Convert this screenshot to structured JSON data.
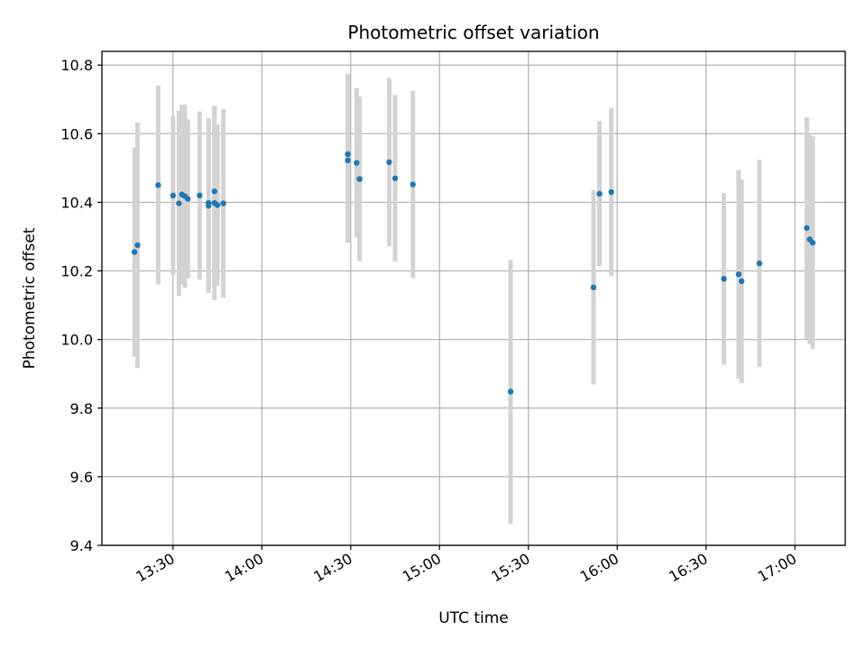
{
  "chart_data": {
    "type": "scatter",
    "title": "Photometric offset variation",
    "xlabel": "UTC time",
    "ylabel": "Photometric offset",
    "grid": true,
    "colors": {
      "point": "#1f77b4",
      "errorbar": "#d3d3d3",
      "grid": "#b0b0b0"
    },
    "xlim": [
      "13:06",
      "17:17"
    ],
    "ylim": [
      9.4,
      10.84
    ],
    "x_ticks": [
      "13:30",
      "14:00",
      "14:30",
      "15:00",
      "15:30",
      "16:00",
      "16:30",
      "17:00"
    ],
    "y_ticks": [
      "9.4",
      "9.6",
      "9.8",
      "10.0",
      "10.2",
      "10.4",
      "10.6",
      "10.8"
    ],
    "points": [
      {
        "x": "13:17",
        "y": 10.255,
        "err": 0.305
      },
      {
        "x": "13:18",
        "y": 10.275,
        "err": 0.358
      },
      {
        "x": "13:25",
        "y": 10.45,
        "err": 0.29
      },
      {
        "x": "13:30",
        "y": 10.42,
        "err": 0.232
      },
      {
        "x": "13:32",
        "y": 10.397,
        "err": 0.27
      },
      {
        "x": "13:33",
        "y": 10.423,
        "err": 0.262
      },
      {
        "x": "13:34",
        "y": 10.418,
        "err": 0.267
      },
      {
        "x": "13:35",
        "y": 10.41,
        "err": 0.232
      },
      {
        "x": "13:39",
        "y": 10.42,
        "err": 0.245
      },
      {
        "x": "13:42",
        "y": 10.39,
        "err": 0.255
      },
      {
        "x": "13:42",
        "y": 10.398,
        "err": 0.247
      },
      {
        "x": "13:44",
        "y": 10.432,
        "err": 0.25
      },
      {
        "x": "13:44",
        "y": 10.398,
        "err": 0.283
      },
      {
        "x": "13:45",
        "y": 10.392,
        "err": 0.235
      },
      {
        "x": "13:47",
        "y": 10.397,
        "err": 0.275
      },
      {
        "x": "14:29",
        "y": 10.54,
        "err": 0.235
      },
      {
        "x": "14:29",
        "y": 10.522,
        "err": 0.24
      },
      {
        "x": "14:32",
        "y": 10.515,
        "err": 0.218
      },
      {
        "x": "14:33",
        "y": 10.468,
        "err": 0.24
      },
      {
        "x": "14:43",
        "y": 10.517,
        "err": 0.245
      },
      {
        "x": "14:45",
        "y": 10.47,
        "err": 0.243
      },
      {
        "x": "14:51",
        "y": 10.452,
        "err": 0.273
      },
      {
        "x": "15:24",
        "y": 9.848,
        "err": 0.385
      },
      {
        "x": "15:52",
        "y": 10.152,
        "err": 0.283
      },
      {
        "x": "15:54",
        "y": 10.425,
        "err": 0.212
      },
      {
        "x": "15:58",
        "y": 10.43,
        "err": 0.245
      },
      {
        "x": "16:36",
        "y": 10.177,
        "err": 0.25
      },
      {
        "x": "16:41",
        "y": 10.19,
        "err": 0.305
      },
      {
        "x": "16:42",
        "y": 10.17,
        "err": 0.297
      },
      {
        "x": "16:48",
        "y": 10.222,
        "err": 0.302
      },
      {
        "x": "17:04",
        "y": 10.325,
        "err": 0.323
      },
      {
        "x": "17:05",
        "y": 10.292,
        "err": 0.305
      },
      {
        "x": "17:06",
        "y": 10.282,
        "err": 0.31
      }
    ]
  }
}
